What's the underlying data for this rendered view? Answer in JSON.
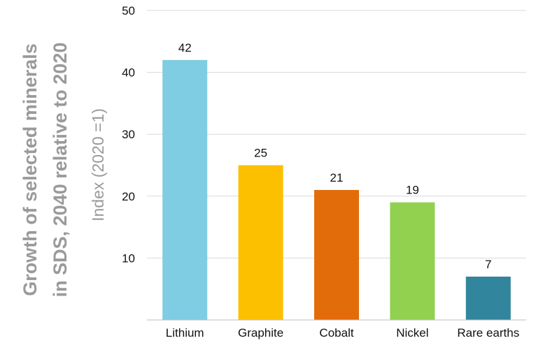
{
  "chart_data": {
    "type": "bar",
    "title_lines": [
      "Growth of selected minerals",
      "in SDS,  2040 relative to 2020"
    ],
    "ylabel": "Index (2020 =1)",
    "xlabel": "",
    "categories": [
      "Lithium",
      "Graphite",
      "Cobalt",
      "Nickel",
      "Rare earths"
    ],
    "values": [
      42,
      25,
      21,
      19,
      7
    ],
    "data_labels": [
      "42",
      "25",
      "21",
      "19",
      "7"
    ],
    "colors": [
      "#7ecde2",
      "#fcc000",
      "#e36c0a",
      "#92d050",
      "#31859c"
    ],
    "ylim": [
      0,
      50
    ],
    "yticks": [
      10,
      20,
      30,
      40,
      50
    ],
    "grid": true,
    "legend": "none"
  }
}
